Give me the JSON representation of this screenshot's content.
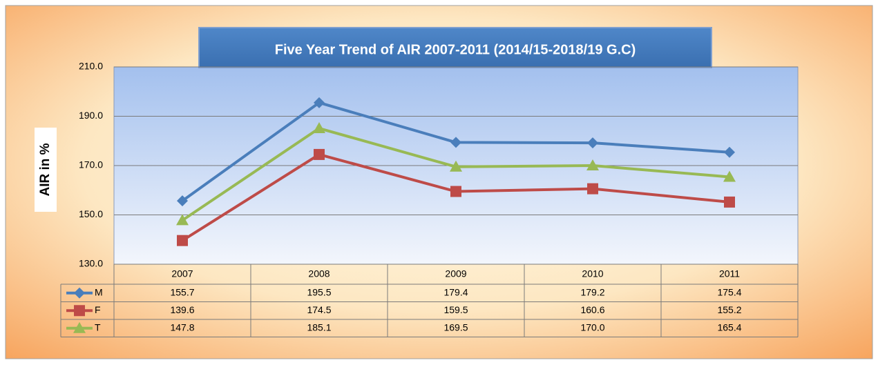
{
  "chart_data": {
    "type": "line",
    "title": "Five Year Trend of AIR 2007-2011 (2014/15-2018/19 G.C)",
    "y_label": "AIR  in %",
    "categories": [
      "2007",
      "2008",
      "2009",
      "2010",
      "2011"
    ],
    "series": [
      {
        "name": "M",
        "color": "#4a7ebb",
        "marker": "diamond",
        "values": [
          155.7,
          195.5,
          179.4,
          179.2,
          175.4
        ],
        "value_labels": [
          "155.7",
          "195.5",
          "179.4",
          "179.2",
          "175.4"
        ]
      },
      {
        "name": "F",
        "color": "#be4b48",
        "marker": "square",
        "values": [
          139.6,
          174.5,
          159.5,
          160.6,
          155.2
        ],
        "value_labels": [
          "139.6",
          "174.5",
          "159.5",
          "160.6",
          "155.2"
        ]
      },
      {
        "name": "T",
        "color": "#98b954",
        "marker": "triangle",
        "values": [
          147.8,
          185.1,
          169.5,
          170,
          165.4
        ],
        "value_labels": [
          "147.8",
          "185.1",
          "169.5",
          "170.0",
          "165.4"
        ]
      }
    ],
    "ylim": [
      130,
      210
    ],
    "yticks": [
      {
        "value": 130,
        "label": "130.0"
      },
      {
        "value": 150,
        "label": "150.0"
      },
      {
        "value": 170,
        "label": "170.0"
      },
      {
        "value": 190,
        "label": "190.0"
      },
      {
        "value": 210,
        "label": "210.0"
      }
    ],
    "grid": true
  }
}
